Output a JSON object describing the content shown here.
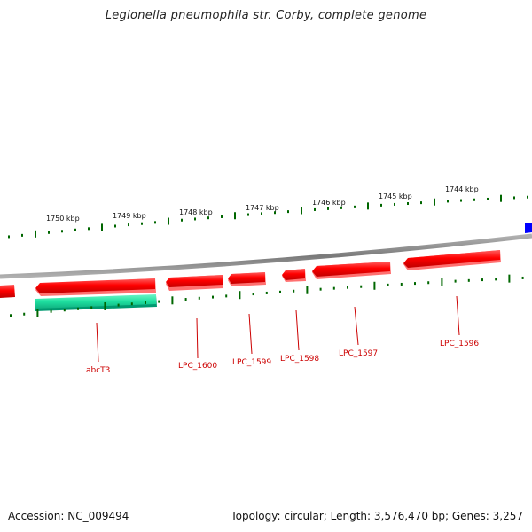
{
  "title": "Legionella pneumophila str. Corby, complete genome",
  "footer": {
    "accession": "Accession: NC_009494",
    "summary": "Topology: circular; Length: 3,576,470 bp; Genes: 3,257"
  },
  "colors": {
    "forward_gene": "#ff0000",
    "reverse_gene": "#ff0000",
    "other_strand_gene": "#1fe0a0",
    "edge_gene": "#0000ff",
    "backbone": "#808080",
    "ticks": "#006600",
    "labels": "#cc0000"
  },
  "ruler": {
    "labels": [
      "1750 kbp",
      "1749 kbp",
      "1748 kbp",
      "1747 kbp",
      "1746 kbp",
      "1745 kbp",
      "1744 kbp"
    ]
  },
  "genes": [
    {
      "label": "abcT3"
    },
    {
      "label": "LPC_1600"
    },
    {
      "label": "LPC_1599"
    },
    {
      "label": "LPC_1598"
    },
    {
      "label": "LPC_1597"
    },
    {
      "label": "LPC_1596"
    }
  ]
}
